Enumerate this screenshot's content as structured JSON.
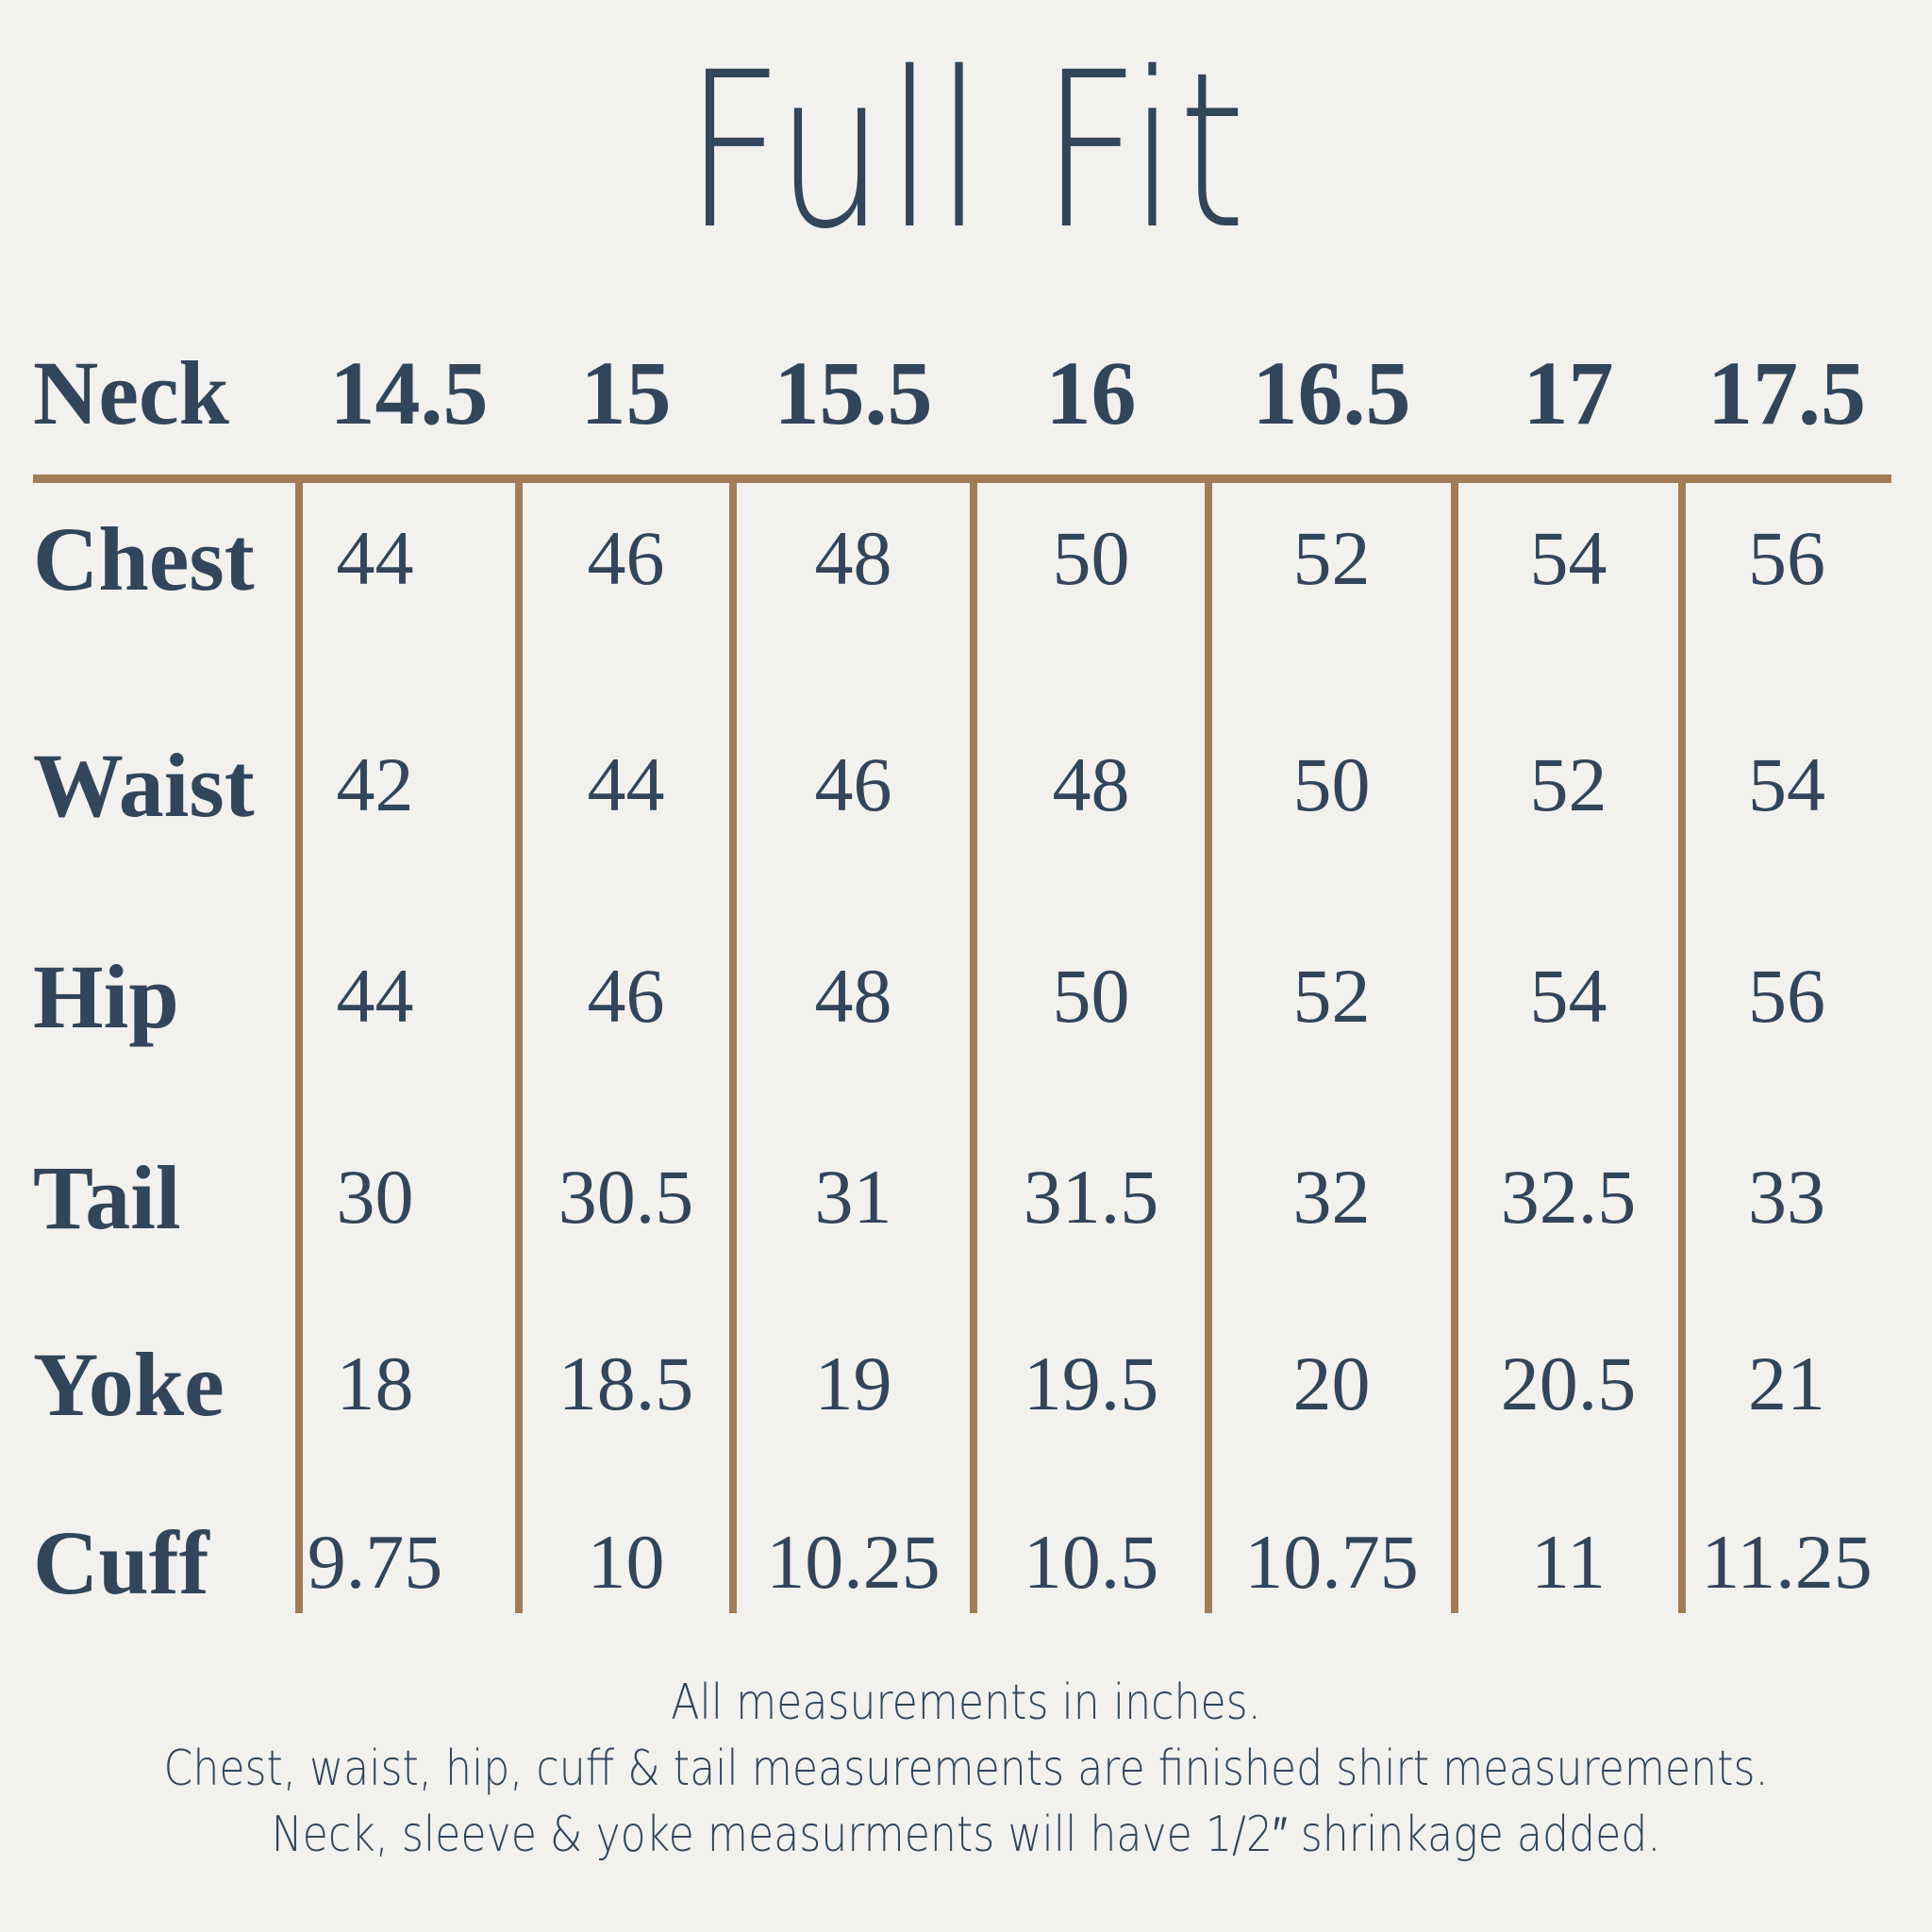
{
  "colors": {
    "background": "#F2F1EE",
    "text_navy": "#31455B",
    "line_brown": "#A27C55"
  },
  "title": "Full Fit",
  "table": {
    "header_label": "Neck",
    "header_sizes": [
      "14.5",
      "15",
      "15.5",
      "16",
      "16.5",
      "17",
      "17.5"
    ],
    "rows": [
      {
        "label": "Chest",
        "values": [
          "44",
          "46",
          "48",
          "50",
          "52",
          "54",
          "56"
        ]
      },
      {
        "label": "Waist",
        "values": [
          "42",
          "44",
          "46",
          "48",
          "50",
          "52",
          "54"
        ]
      },
      {
        "label": "Hip",
        "values": [
          "44",
          "46",
          "48",
          "50",
          "52",
          "54",
          "56"
        ]
      },
      {
        "label": "Tail",
        "values": [
          "30",
          "30.5",
          "31",
          "31.5",
          "32",
          "32.5",
          "33"
        ]
      },
      {
        "label": "Yoke",
        "values": [
          "18",
          "18.5",
          "19",
          "19.5",
          "20",
          "20.5",
          "21"
        ]
      },
      {
        "label": "Cuff",
        "values": [
          "9.75",
          "10",
          "10.25",
          "10.5",
          "10.75",
          "11",
          "11.25"
        ]
      }
    ]
  },
  "footer_lines": [
    "All measurements in inches.",
    "Chest, waist, hip, cuff & tail measurements are finished shirt measurements.",
    "Neck, sleeve & yoke measurments will have 1/2″ shrinkage added."
  ],
  "chart_data": {
    "type": "table",
    "title": "Full Fit",
    "column_header_label": "Neck",
    "columns": [
      14.5,
      15,
      15.5,
      16,
      16.5,
      17,
      17.5
    ],
    "row_headers": [
      "Chest",
      "Waist",
      "Hip",
      "Tail",
      "Yoke",
      "Cuff"
    ],
    "rows": [
      [
        44,
        46,
        48,
        50,
        52,
        54,
        56
      ],
      [
        42,
        44,
        46,
        48,
        50,
        52,
        54
      ],
      [
        44,
        46,
        48,
        50,
        52,
        54,
        56
      ],
      [
        30,
        30.5,
        31,
        31.5,
        32,
        32.5,
        33
      ],
      [
        18,
        18.5,
        19,
        19.5,
        20,
        20.5,
        21
      ],
      [
        9.75,
        10,
        10.25,
        10.5,
        10.75,
        11,
        11.25
      ]
    ],
    "units": "inches",
    "notes": [
      "All measurements in inches.",
      "Chest, waist, hip, cuff & tail measurements are finished shirt measurements.",
      "Neck, sleeve & yoke measurments will have 1/2″ shrinkage added."
    ]
  }
}
